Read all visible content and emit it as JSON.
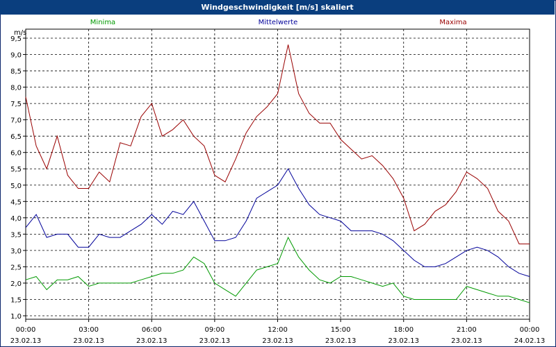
{
  "window": {
    "title": "Windgeschwindigkeit [m/s] skaliert"
  },
  "chart_data": {
    "type": "line",
    "title": "Windgeschwindigkeit [m/s] skaliert",
    "ylabel": "m/s",
    "xlabel": "",
    "ylim": [
      1.0,
      9.5
    ],
    "yticks": [
      "1,0",
      "1,5",
      "2,0",
      "2,5",
      "3,0",
      "3,5",
      "4,0",
      "4,5",
      "5,0",
      "5,5",
      "6,0",
      "6,5",
      "7,0",
      "7,5",
      "8,0",
      "8,5",
      "9,0",
      "9,5"
    ],
    "xticks": [
      {
        "time": "00:00",
        "date": "23.02.13"
      },
      {
        "time": "03:00",
        "date": "23.02.13"
      },
      {
        "time": "06:00",
        "date": "23.02.13"
      },
      {
        "time": "09:00",
        "date": "23.02.13"
      },
      {
        "time": "12:00",
        "date": "23.02.13"
      },
      {
        "time": "15:00",
        "date": "23.02.13"
      },
      {
        "time": "18:00",
        "date": "23.02.13"
      },
      {
        "time": "21:00",
        "date": "23.02.13"
      },
      {
        "time": "00:00",
        "date": "24.02.13"
      }
    ],
    "x_range_hours": [
      0,
      24
    ],
    "grid": true,
    "series": [
      {
        "name": "Minima",
        "color": "#009900",
        "x": [
          0,
          0.5,
          1,
          1.5,
          2,
          2.5,
          3,
          3.5,
          4,
          4.5,
          5,
          5.5,
          6,
          6.5,
          7,
          7.5,
          8,
          8.5,
          9,
          9.5,
          10,
          10.5,
          11,
          11.5,
          12,
          12.5,
          13,
          13.5,
          14,
          14.5,
          15,
          15.5,
          16,
          16.5,
          17,
          17.5,
          18,
          18.5,
          19,
          19.5,
          20,
          20.5,
          21,
          21.5,
          22,
          22.5,
          23,
          23.5,
          24
        ],
        "values": [
          2.1,
          2.2,
          1.8,
          2.1,
          2.1,
          2.2,
          1.9,
          2.0,
          2.0,
          2.0,
          2.0,
          2.1,
          2.2,
          2.3,
          2.3,
          2.4,
          2.8,
          2.6,
          2.0,
          1.8,
          1.6,
          2.0,
          2.4,
          2.5,
          2.6,
          3.4,
          2.8,
          2.4,
          2.1,
          2.0,
          2.2,
          2.2,
          2.1,
          2.0,
          1.9,
          2.0,
          1.6,
          1.5,
          1.5,
          1.5,
          1.5,
          1.5,
          1.9,
          1.8,
          1.7,
          1.6,
          1.6,
          1.5,
          1.4
        ]
      },
      {
        "name": "Mittelwerte",
        "color": "#000099",
        "x": [
          0,
          0.5,
          1,
          1.5,
          2,
          2.5,
          3,
          3.5,
          4,
          4.5,
          5,
          5.5,
          6,
          6.5,
          7,
          7.5,
          8,
          8.5,
          9,
          9.5,
          10,
          10.5,
          11,
          11.5,
          12,
          12.5,
          13,
          13.5,
          14,
          14.5,
          15,
          15.5,
          16,
          16.5,
          17,
          17.5,
          18,
          18.5,
          19,
          19.5,
          20,
          20.5,
          21,
          21.5,
          22,
          22.5,
          23,
          23.5,
          24
        ],
        "values": [
          3.7,
          4.1,
          3.4,
          3.5,
          3.5,
          3.1,
          3.1,
          3.5,
          3.4,
          3.4,
          3.6,
          3.8,
          4.1,
          3.8,
          4.2,
          4.1,
          4.5,
          3.9,
          3.3,
          3.3,
          3.4,
          3.9,
          4.6,
          4.8,
          5.0,
          5.5,
          4.9,
          4.4,
          4.1,
          4.0,
          3.9,
          3.6,
          3.6,
          3.6,
          3.5,
          3.3,
          3.0,
          2.7,
          2.5,
          2.5,
          2.6,
          2.8,
          3.0,
          3.1,
          3.0,
          2.8,
          2.5,
          2.3,
          2.2
        ]
      },
      {
        "name": "Maxima",
        "color": "#990000",
        "x": [
          0,
          0.5,
          1,
          1.5,
          2,
          2.5,
          3,
          3.5,
          4,
          4.5,
          5,
          5.5,
          6,
          6.5,
          7,
          7.5,
          8,
          8.5,
          9,
          9.5,
          10,
          10.5,
          11,
          11.5,
          12,
          12.5,
          13,
          13.5,
          14,
          14.5,
          15,
          15.5,
          16,
          16.5,
          17,
          17.5,
          18,
          18.5,
          19,
          19.5,
          20,
          20.5,
          21,
          21.5,
          22,
          22.5,
          23,
          23.5,
          24
        ],
        "values": [
          7.7,
          6.2,
          5.5,
          6.5,
          5.3,
          4.9,
          4.9,
          5.4,
          5.1,
          6.3,
          6.2,
          7.1,
          7.5,
          6.5,
          6.7,
          7.0,
          6.5,
          6.2,
          5.3,
          5.1,
          5.8,
          6.6,
          7.1,
          7.4,
          7.8,
          9.3,
          7.8,
          7.2,
          6.9,
          6.9,
          6.4,
          6.1,
          5.8,
          5.9,
          5.6,
          5.2,
          4.6,
          3.6,
          3.8,
          4.2,
          4.4,
          4.8,
          5.4,
          5.2,
          4.9,
          4.2,
          3.9,
          3.2,
          3.2
        ]
      }
    ]
  }
}
